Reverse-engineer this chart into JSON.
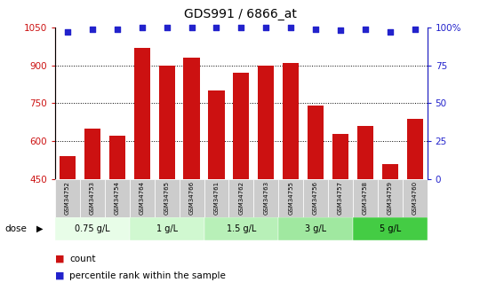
{
  "title": "GDS991 / 6866_at",
  "samples": [
    "GSM34752",
    "GSM34753",
    "GSM34754",
    "GSM34764",
    "GSM34765",
    "GSM34766",
    "GSM34761",
    "GSM34762",
    "GSM34763",
    "GSM34755",
    "GSM34756",
    "GSM34757",
    "GSM34758",
    "GSM34759",
    "GSM34760"
  ],
  "bar_values": [
    540,
    650,
    620,
    970,
    900,
    930,
    800,
    870,
    900,
    910,
    740,
    630,
    660,
    510,
    690
  ],
  "dot_values": [
    97,
    99,
    99,
    100,
    100,
    100,
    100,
    100,
    100,
    100,
    99,
    98,
    99,
    97,
    99
  ],
  "bar_color": "#cc1111",
  "dot_color": "#2222cc",
  "ylim_left": [
    450,
    1050
  ],
  "ylim_right": [
    0,
    100
  ],
  "yticks_left": [
    450,
    600,
    750,
    900,
    1050
  ],
  "yticks_right": [
    0,
    25,
    50,
    75,
    100
  ],
  "dose_groups": {
    "0.75 g/L": [
      0,
      3
    ],
    "1 g/L": [
      3,
      6
    ],
    "1.5 g/L": [
      6,
      9
    ],
    "3 g/L": [
      9,
      12
    ],
    "5 g/L": [
      12,
      15
    ]
  },
  "green_colors": [
    "#e8fde8",
    "#d0f8d0",
    "#b8f0b8",
    "#a0e8a0",
    "#44cc44"
  ],
  "xlabel_dose": "dose",
  "legend_count": "count",
  "legend_percentile": "percentile rank within the sample",
  "bar_color_left_tick": "#cc1111",
  "dot_color_right_tick": "#2222cc",
  "bar_bottom": 450,
  "sample_bg_color": "#cccccc",
  "grid_yticks": [
    600,
    750,
    900
  ]
}
